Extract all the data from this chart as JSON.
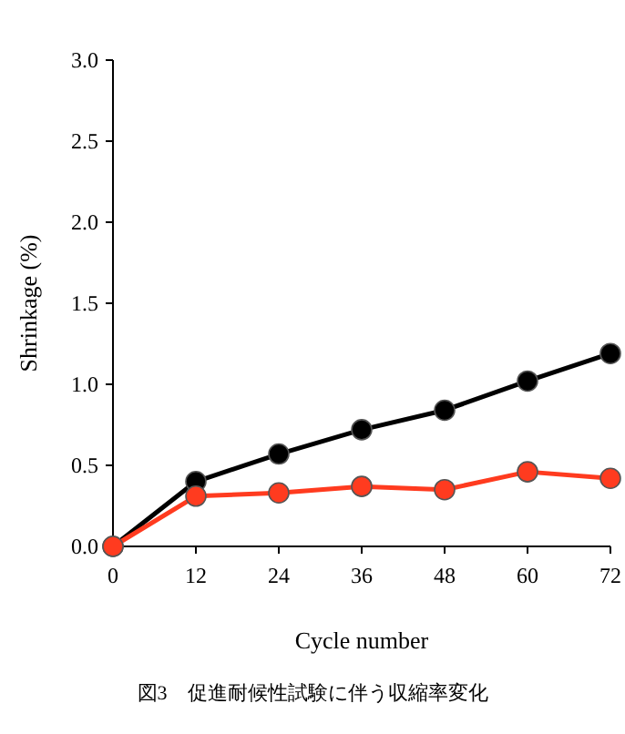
{
  "chart_data": {
    "type": "line",
    "xlabel": "Cycle number",
    "ylabel": "Shrinkage (%)",
    "annotations": [
      "図3　促進耐候性試験に伴う収縮率変化"
    ],
    "x": [
      0,
      12,
      24,
      36,
      48,
      60,
      72
    ],
    "series": [
      {
        "color": "#000000",
        "values": [
          0,
          0.4,
          0.57,
          0.72,
          0.84,
          1.02,
          1.19
        ]
      },
      {
        "color": "#ff3b1f",
        "values": [
          0,
          0.31,
          0.33,
          0.37,
          0.35,
          0.46,
          0.42
        ]
      }
    ],
    "xlim": [
      0,
      72
    ],
    "ylim": [
      0,
      3
    ],
    "xticks": [
      0,
      12,
      24,
      36,
      48,
      60,
      72
    ],
    "yticks": [
      {
        "value": 0,
        "label": "0.0"
      },
      {
        "value": 0.5,
        "label": "0.5"
      },
      {
        "value": 1,
        "label": "1.0"
      },
      {
        "value": 1.5,
        "label": "1.5"
      },
      {
        "value": 2,
        "label": "2.0"
      },
      {
        "value": 2.5,
        "label": "2.5"
      },
      {
        "value": 3,
        "label": "3.0"
      }
    ],
    "marker": "circle"
  }
}
